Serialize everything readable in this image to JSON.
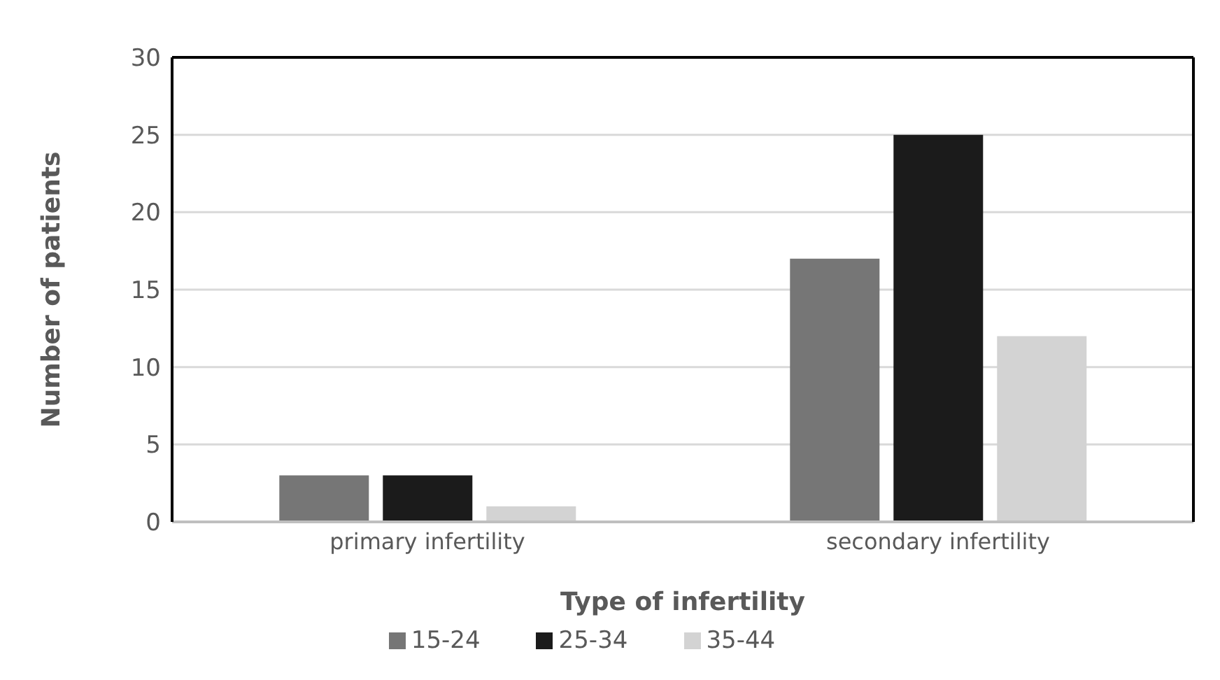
{
  "chart_data": {
    "type": "bar",
    "xlabel": "Type of infertility",
    "ylabel": "Number of patients",
    "categories": [
      "primary infertility",
      "secondary infertility"
    ],
    "series": [
      {
        "name": "15-24",
        "color": "#767676",
        "values": [
          3,
          17
        ]
      },
      {
        "name": "25-34",
        "color": "#1b1b1b",
        "values": [
          3,
          25
        ]
      },
      {
        "name": "35-44",
        "color": "#d3d3d3",
        "values": [
          1,
          12
        ]
      }
    ],
    "ylim": [
      0,
      30
    ],
    "yticks": [
      0,
      5,
      10,
      15,
      20,
      25,
      30
    ],
    "grid": "y",
    "legend": "bottom"
  }
}
